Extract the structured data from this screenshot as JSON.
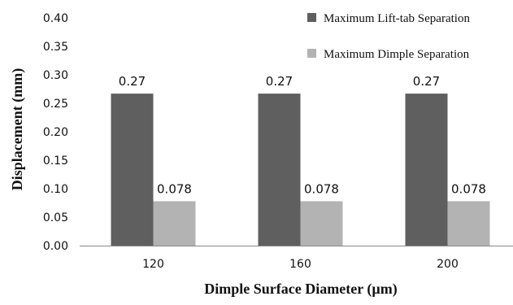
{
  "chart_data": {
    "type": "bar",
    "title": "",
    "xlabel": "Dimple Surface Diameter (µm)",
    "ylabel": "Displacement (mm)",
    "categories": [
      "120",
      "160",
      "200"
    ],
    "ylim": [
      0,
      0.4
    ],
    "yticks": [
      "0.00",
      "0.05",
      "0.10",
      "0.15",
      "0.20",
      "0.25",
      "0.30",
      "0.35",
      "0.40"
    ],
    "grid": false,
    "legend": "top-right",
    "series": [
      {
        "name": "Maximum Lift-tab Separation",
        "values": [
          0.267,
          0.267,
          0.267
        ],
        "labels": [
          "0.27",
          "0.27",
          "0.27"
        ],
        "color": "#5f5f5f"
      },
      {
        "name": "Maximum Dimple Separation",
        "values": [
          0.078,
          0.078,
          0.078
        ],
        "labels": [
          "0.078",
          "0.078",
          "0.078"
        ],
        "color": "#b3b3b3"
      }
    ]
  }
}
